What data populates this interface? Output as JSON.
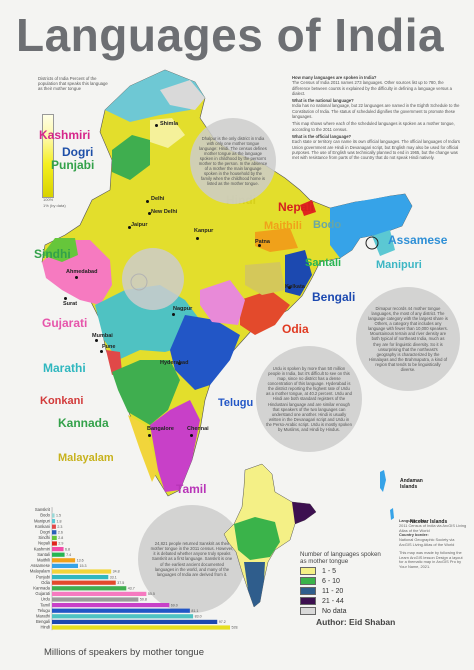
{
  "title": "Languages of India",
  "legend": {
    "caption": "Districts of India Percent of the population that speaks this language as their mother tongue",
    "top_tick": "100%",
    "bottom_tick": "1% (by data)"
  },
  "info_text": [
    {
      "q": "How many languages are spoken in India?",
      "a": "The Census of India 2011 names 273 languages. Other sources list up to 780, the difference between counts is explained by the difficulty in defining a language versus a dialect."
    },
    {
      "q": "What is the national language?",
      "a": "India has no national language, but 22 languages are named in the Eighth Schedule to the Constitution of India. The status of scheduled dignifies the government to promote these languages."
    },
    {
      "q": "",
      "a": "This map shows where each of the scheduled languages is spoken as a mother tongue, according to the 2011 census."
    },
    {
      "q": "What is the official language?",
      "a": "Each state or territory can name its own official languages. The official languages of India's Union government are Hindi in Devanagari script, but English may also be used for official purposes. The use of English was technically planned to end in 1965, but the change was met with resistance from parts of the country that do not speak Hindi natively."
    }
  ],
  "bubbles": {
    "sindhi_note": "Dhalpur is the only district in India with only one mother tongue language: Hindi. The census defines mother tongue as the language spoken in childhood by the person's mother to the person. In the absence of a mother the main language spoken in the household by the family when the childhood home is listed as the mother tongue.",
    "urdu_note": "Urdu is spoken by more than 50 million people in India, but it's difficult to see on this map, since no district has a dense concentration of this language. Hyderabad is the district reporting the highest rate of Urdu as a mother tongue, at 40.2 percent. Urdu and Hindi are both standard registers of the Hindustani language and are similar enough that speakers of the two languages can understand one another. Hindi is usually written in the Devanagari script and Urdu in the Perso-Arabic script. Urdu is mostly spoken by Muslims, and Hindi by Hindus.",
    "sanskrit_note": "24,821 people returned Sanskrit as their mother tongue in the 2011 census. However, it is debated whether anyone truly speaks Sanskrit as a first language. Sanskrit is one of the earliest ancient documented languages in the world, and many of the languages of India are derived from it.",
    "east_note": "Dimapur records 44 mother tongue languages, the most of any district. The language category with the largest share is Others, a category that includes any language with fewer than 10,000 speakers. Mountainous terrain and river density are both typical of northeast India, much as they are for linguistic diversity. So it is unsurprising that the northeast's geography is characterized by the Himalayas and the Brahmaputra, a kind of region that tends to be linguistically diverse.",
    "grey_bubble": ""
  },
  "languages": [
    "Kashmiri",
    "Dogri",
    "Punjabi",
    "Hindi",
    "Nepali",
    "Maithili",
    "Bodo",
    "Assamese",
    "Sindhi",
    "Santali",
    "Manipuri",
    "Bengali",
    "Gujarati",
    "Odia",
    "Marathi",
    "Konkani",
    "Telugu",
    "Kannada",
    "Malayalam",
    "Tamil"
  ],
  "cities": [
    "Shimla",
    "Delhi",
    "New Delhi",
    "Jaipur",
    "Kanpur",
    "Patna",
    "Ahmedabad",
    "Surat",
    "Kolkata",
    "Nagpur",
    "Mumbai",
    "Pune",
    "Hyderabad",
    "Bangalore",
    "Chennai"
  ],
  "islands": {
    "andaman": "Andaman Islands",
    "nicobar": "Nicobar Islands"
  },
  "chart_data": {
    "type": "bar",
    "orientation": "horizontal",
    "xlabel": "Millions of speakers by mother tongue",
    "categories": [
      "Sanskrit",
      "Bodo",
      "Manipuri",
      "Konkani",
      "Dogri",
      "Sindhi",
      "Nepali",
      "Kashmiri",
      "Santali",
      "Maithili",
      "Assamese",
      "Malayalam",
      "Punjabi",
      "Odia",
      "Kannada",
      "Gujarati",
      "Urdu",
      "Tamil",
      "Telugu",
      "Marathi",
      "Bengali",
      "Hindi"
    ],
    "values": [
      0.02,
      1.5,
      1.8,
      2.3,
      2.6,
      2.8,
      2.9,
      6.8,
      7.4,
      13.6,
      15.3,
      34.8,
      33.1,
      37.5,
      43.7,
      55.5,
      50.8,
      69.0,
      81.1,
      83.0,
      97.2,
      528.3
    ],
    "value_labels": [
      "",
      "1.5",
      "1.8",
      "2.3",
      "2.6",
      "2.8",
      "2.9",
      "6.8",
      "7.4",
      "13.6",
      "15.3",
      "34.8",
      "33.1",
      "37.5",
      "43.7",
      "55.5",
      "50.8",
      "69.0",
      "81.1",
      "83.0",
      "97.2",
      "528.3"
    ],
    "colors": [
      "#bdbdbd",
      "#9ad8d6",
      "#5bc8d3",
      "#e04848",
      "#2a5fb8",
      "#66c63b",
      "#e0251f",
      "#f14da9",
      "#28b553",
      "#f0a11a",
      "#36a3e8",
      "#f1d53b",
      "#2fb7bf",
      "#e34a2c",
      "#3fae4f",
      "#f67ac0",
      "#9b9b9b",
      "#c840c8",
      "#2256c6",
      "#4fc2c2",
      "#1c49b0",
      "#e6df20"
    ],
    "xmax_display": 100,
    "hindi_break": true
  },
  "small_map_legend": {
    "title": "Number of languages spoken as mother tongue",
    "items": [
      {
        "label": "1 - 5",
        "color": "#f4f086"
      },
      {
        "label": "6 - 10",
        "color": "#3ab34a"
      },
      {
        "label": "11 - 20",
        "color": "#2f5d8c"
      },
      {
        "label": "21 - 44",
        "color": "#3d1050"
      },
      {
        "label": "No data",
        "color": "#d9d9d9"
      }
    ]
  },
  "author": "Author: Eid Shaban",
  "credits": [
    {
      "h": "Language data:",
      "t": "2011 Census of India via ArcGIS Living Atlas of the World"
    },
    {
      "h": "Country border:",
      "t": "National Geographic Society via ArcGIS Living Atlas of the World"
    },
    {
      "h": "",
      "t": "This map was made by following the Learn ArcGIS lesson Design a layout for a thematic map in ArcGIS Pro by Your Name, 2021."
    }
  ],
  "colors": {
    "title": "#6d6f73",
    "background": "#f4f4f2"
  }
}
